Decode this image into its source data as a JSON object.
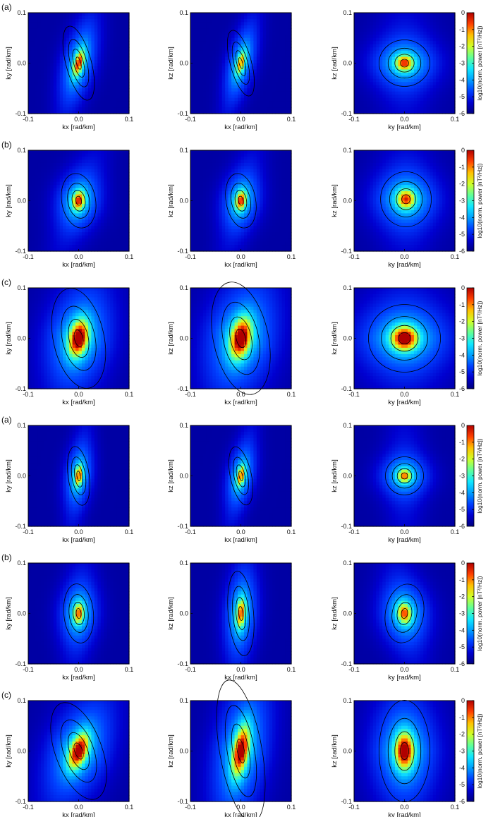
{
  "colors": {
    "colormap": [
      "#00007f",
      "#0000d0",
      "#0040ff",
      "#00a0ff",
      "#10e8ff",
      "#60ff98",
      "#d0ff28",
      "#ffc000",
      "#ff4000",
      "#b00000"
    ],
    "contour": "#000000",
    "axis": "#000000"
  },
  "chart_data": [
    {
      "type": "heatmap",
      "row_label": "(a)",
      "panels": [
        {
          "xlabel": "kx [rad/km]",
          "ylabel": "ky [rad/km]",
          "xticks": [
            "-0.1",
            "0.0",
            "0.1"
          ],
          "yticks": [
            "-0.1",
            "0.0",
            "0.1"
          ],
          "xlim": [
            -0.1,
            0.1
          ],
          "ylim": [
            -0.1,
            0.1
          ],
          "peak": [
            0.0,
            0.0
          ],
          "blob_axes": [
            0.006,
            0.018
          ],
          "blob_tilt_deg": -15,
          "ridge_tilt_deg": -15,
          "peak_log10_power": -2.3
        },
        {
          "xlabel": "kx [rad/km]",
          "ylabel": "kz [rad/km]",
          "xticks": [
            "-0.1",
            "0.0",
            "0.1"
          ],
          "yticks": [
            "-0.1",
            "0.0",
            "0.1"
          ],
          "xlim": [
            -0.1,
            0.1
          ],
          "ylim": [
            -0.1,
            0.1
          ],
          "peak": [
            0.0,
            0.0
          ],
          "blob_axes": [
            0.005,
            0.016
          ],
          "blob_tilt_deg": -15,
          "ridge_tilt_deg": -15,
          "peak_log10_power": -3.0
        },
        {
          "xlabel": "ky [rad/km]",
          "ylabel": "kz [rad/km]",
          "xticks": [
            "-0.1",
            "0.0",
            "0.1"
          ],
          "yticks": [
            "-0.1",
            "0.0",
            "0.1"
          ],
          "xlim": [
            -0.1,
            0.1
          ],
          "ylim": [
            -0.1,
            0.1
          ],
          "peak": [
            0.0,
            0.0
          ],
          "blob_axes": [
            0.012,
            0.011
          ],
          "blob_tilt_deg": 0,
          "ridge_tilt_deg": 0,
          "peak_log10_power": -2.4
        }
      ],
      "colorbar": {
        "label": "log10(norm. power [nT²/Hz])",
        "ticks": [
          "0",
          "-1",
          "-2",
          "-3",
          "-4",
          "-5",
          "-6"
        ],
        "range": [
          -6,
          0
        ]
      }
    },
    {
      "type": "heatmap",
      "row_label": "(b)",
      "panels": [
        {
          "xlabel": "kx [rad/km]",
          "ylabel": "ky [rad/km]",
          "xticks": [
            "-0.1",
            "0.0",
            "0.1"
          ],
          "yticks": [
            "-0.1",
            "0.0",
            "0.1"
          ],
          "xlim": [
            -0.1,
            0.1
          ],
          "ylim": [
            -0.1,
            0.1
          ],
          "peak": [
            0.0,
            0.0
          ],
          "blob_axes": [
            0.008,
            0.013
          ],
          "blob_tilt_deg": -10,
          "ridge_tilt_deg": -20,
          "peak_log10_power": -2.2
        },
        {
          "xlabel": "kx [rad/km]",
          "ylabel": "kz [rad/km]",
          "xticks": [
            "-0.1",
            "0.0",
            "0.1"
          ],
          "yticks": [
            "-0.1",
            "0.0",
            "0.1"
          ],
          "xlim": [
            -0.1,
            0.1
          ],
          "ylim": [
            -0.1,
            0.1
          ],
          "peak": [
            0.0,
            0.0
          ],
          "blob_axes": [
            0.007,
            0.013
          ],
          "blob_tilt_deg": -10,
          "ridge_tilt_deg": -15,
          "peak_log10_power": -2.3
        },
        {
          "xlabel": "ky [rad/km]",
          "ylabel": "kz [rad/km]",
          "xticks": [
            "-0.1",
            "0.0",
            "0.1"
          ],
          "yticks": [
            "-0.1",
            "0.0",
            "0.1"
          ],
          "xlim": [
            -0.1,
            0.1
          ],
          "ylim": [
            -0.1,
            0.1
          ],
          "peak": [
            0.003,
            0.003
          ],
          "blob_axes": [
            0.012,
            0.013
          ],
          "blob_tilt_deg": 0,
          "ridge_tilt_deg": 0,
          "peak_log10_power": -2.4
        }
      ],
      "colorbar": {
        "label": "log10(norm. power [nT²/Hz])",
        "ticks": [
          "0",
          "-1",
          "-2",
          "-3",
          "-4",
          "-5",
          "-6"
        ],
        "range": [
          -6,
          0
        ]
      }
    },
    {
      "type": "heatmap",
      "row_label": "(c)",
      "panels": [
        {
          "xlabel": "kx [rad/km]",
          "ylabel": "ky [rad/km]",
          "xticks": [
            "-0.1",
            "0.0",
            "0.1"
          ],
          "yticks": [
            "-0.1",
            "0.0",
            "0.1"
          ],
          "xlim": [
            -0.1,
            0.1
          ],
          "ylim": [
            -0.1,
            0.1
          ],
          "peak": [
            0.0,
            0.0
          ],
          "blob_axes": [
            0.012,
            0.024
          ],
          "blob_tilt_deg": -12,
          "ridge_tilt_deg": -15,
          "peak_log10_power": -1.0
        },
        {
          "xlabel": "kx [rad/km]",
          "ylabel": "kz [rad/km]",
          "xticks": [
            "-0.1",
            "0.0",
            "0.1"
          ],
          "yticks": [
            "-0.1",
            "0.0",
            "0.1"
          ],
          "xlim": [
            -0.1,
            0.1
          ],
          "ylim": [
            -0.1,
            0.1
          ],
          "peak": [
            0.0,
            0.0
          ],
          "blob_axes": [
            0.013,
            0.027
          ],
          "blob_tilt_deg": -12,
          "ridge_tilt_deg": -18,
          "peak_log10_power": -1.0
        },
        {
          "xlabel": "ky [rad/km]",
          "ylabel": "kz [rad/km]",
          "xticks": [
            "-0.1",
            "0.0",
            "0.1"
          ],
          "yticks": [
            "-0.1",
            "0.0",
            "0.1"
          ],
          "xlim": [
            -0.1,
            0.1
          ],
          "ylim": [
            -0.1,
            0.1
          ],
          "peak": [
            0.0,
            0.0
          ],
          "blob_axes": [
            0.017,
            0.016
          ],
          "blob_tilt_deg": 0,
          "ridge_tilt_deg": 0,
          "peak_log10_power": -1.2
        }
      ],
      "colorbar": {
        "label": "log10(norm. power [nT²/Hz])",
        "ticks": [
          "0",
          "-1",
          "-2",
          "-3",
          "-4",
          "-5",
          "-6"
        ],
        "range": [
          -6,
          0
        ]
      }
    },
    {
      "type": "heatmap",
      "row_label": "(a)",
      "panels": [
        {
          "xlabel": "kx [rad/km]",
          "ylabel": "ky [rad/km]",
          "xticks": [
            "-0.1",
            "0.0",
            "0.1"
          ],
          "yticks": [
            "-0.1",
            "0.0",
            "0.1"
          ],
          "xlim": [
            -0.1,
            0.1
          ],
          "ylim": [
            -0.1,
            0.1
          ],
          "peak": [
            0.0,
            0.0
          ],
          "blob_axes": [
            0.005,
            0.014
          ],
          "blob_tilt_deg": -8,
          "ridge_tilt_deg": -8,
          "peak_log10_power": -2.6
        },
        {
          "xlabel": "kx [rad/km]",
          "ylabel": "kz [rad/km]",
          "xticks": [
            "-0.1",
            "0.0",
            "0.1"
          ],
          "yticks": [
            "-0.1",
            "0.0",
            "0.1"
          ],
          "xlim": [
            -0.1,
            0.1
          ],
          "ylim": [
            -0.1,
            0.1
          ],
          "peak": [
            0.0,
            0.0
          ],
          "blob_axes": [
            0.005,
            0.014
          ],
          "blob_tilt_deg": -12,
          "ridge_tilt_deg": -12,
          "peak_log10_power": -2.7
        },
        {
          "xlabel": "ky [rad/km]",
          "ylabel": "kz [rad/km]",
          "xticks": [
            "-0.1",
            "0.0",
            "0.1"
          ],
          "yticks": [
            "-0.1",
            "0.0",
            "0.1"
          ],
          "xlim": [
            -0.1,
            0.1
          ],
          "ylim": [
            -0.1,
            0.1
          ],
          "peak": [
            0.0,
            0.0
          ],
          "blob_axes": [
            0.009,
            0.009
          ],
          "blob_tilt_deg": 0,
          "ridge_tilt_deg": 0,
          "peak_log10_power": -2.8
        }
      ],
      "colorbar": {
        "label": "log10(norm. power [nT²/Hz])",
        "ticks": [
          "0",
          "-1",
          "-2",
          "-3",
          "-4",
          "-5",
          "-6"
        ],
        "range": [
          -6,
          0
        ]
      }
    },
    {
      "type": "heatmap",
      "row_label": "(b)",
      "panels": [
        {
          "xlabel": "kx [rad/km]",
          "ylabel": "ky [rad/km]",
          "xticks": [
            "-0.1",
            "0.0",
            "0.1"
          ],
          "yticks": [
            "-0.1",
            "0.0",
            "0.1"
          ],
          "xlim": [
            -0.1,
            0.1
          ],
          "ylim": [
            -0.1,
            0.1
          ],
          "peak": [
            0.0,
            0.0
          ],
          "blob_axes": [
            0.007,
            0.014
          ],
          "blob_tilt_deg": -5,
          "ridge_tilt_deg": -5,
          "peak_log10_power": -2.7
        },
        {
          "xlabel": "kx [rad/km]",
          "ylabel": "kz [rad/km]",
          "xticks": [
            "-0.1",
            "0.0",
            "0.1"
          ],
          "yticks": [
            "-0.1",
            "0.0",
            "0.1"
          ],
          "xlim": [
            -0.1,
            0.1
          ],
          "ylim": [
            -0.1,
            0.1
          ],
          "peak": [
            0.0,
            0.0
          ],
          "blob_axes": [
            0.006,
            0.02
          ],
          "blob_tilt_deg": -5,
          "ridge_tilt_deg": -5,
          "peak_log10_power": -2.6
        },
        {
          "xlabel": "ky [rad/km]",
          "ylabel": "kz [rad/km]",
          "xticks": [
            "-0.1",
            "0.0",
            "0.1"
          ],
          "yticks": [
            "-0.1",
            "0.0",
            "0.1"
          ],
          "xlim": [
            -0.1,
            0.1
          ],
          "ylim": [
            -0.1,
            0.1
          ],
          "peak": [
            0.0,
            0.0
          ],
          "blob_axes": [
            0.009,
            0.014
          ],
          "blob_tilt_deg": 10,
          "ridge_tilt_deg": 10,
          "peak_log10_power": -2.6
        }
      ],
      "colorbar": {
        "label": "log10(norm. power [nT²/Hz])",
        "ticks": [
          "0",
          "-1",
          "-2",
          "-3",
          "-4",
          "-5",
          "-6"
        ],
        "range": [
          -6,
          0
        ]
      }
    },
    {
      "type": "heatmap",
      "row_label": "(c)",
      "panels": [
        {
          "xlabel": "kx [rad/km]",
          "ylabel": "ky [rad/km]",
          "xticks": [
            "-0.1",
            "0.0",
            "0.1"
          ],
          "yticks": [
            "-0.1",
            "0.0",
            "0.1"
          ],
          "xlim": [
            -0.1,
            0.1
          ],
          "ylim": [
            -0.1,
            0.1
          ],
          "peak": [
            0.0,
            0.0
          ],
          "blob_axes": [
            0.011,
            0.024
          ],
          "blob_tilt_deg": -20,
          "ridge_tilt_deg": -25,
          "peak_log10_power": -1.3
        },
        {
          "xlabel": "kx [rad/km]",
          "ylabel": "kz [rad/km]",
          "xticks": [
            "-0.1",
            "0.0",
            "0.1"
          ],
          "yticks": [
            "-0.1",
            "0.0",
            "0.1"
          ],
          "xlim": [
            -0.1,
            0.1
          ],
          "ylim": [
            -0.1,
            0.1
          ],
          "peak": [
            0.0,
            0.0
          ],
          "blob_axes": [
            0.01,
            0.034
          ],
          "blob_tilt_deg": -10,
          "ridge_tilt_deg": -12,
          "peak_log10_power": -1.4
        },
        {
          "xlabel": "ky [rad/km]",
          "ylabel": "kz [rad/km]",
          "xticks": [
            "-0.1",
            "0.0",
            "0.1"
          ],
          "yticks": [
            "-0.1",
            "0.0",
            "0.1"
          ],
          "xlim": [
            -0.1,
            0.1
          ],
          "ylim": [
            -0.1,
            0.1
          ],
          "peak": [
            0.0,
            0.0
          ],
          "blob_axes": [
            0.012,
            0.024
          ],
          "blob_tilt_deg": 0,
          "ridge_tilt_deg": 0,
          "peak_log10_power": -1.2
        }
      ],
      "colorbar": {
        "label": "log10(norm. power [nT²/Hz])",
        "ticks": [
          "0",
          "-1",
          "-2",
          "-3",
          "-4",
          "-5",
          "-6"
        ],
        "range": [
          -6,
          0
        ]
      }
    }
  ]
}
